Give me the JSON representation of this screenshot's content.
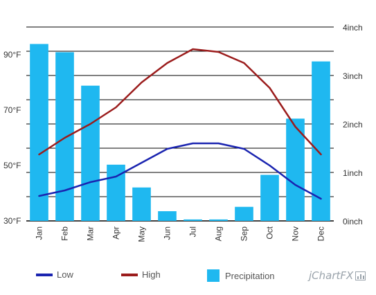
{
  "chart_data": {
    "type": "bar+line",
    "categories": [
      "Jan",
      "Feb",
      "Mar",
      "Apr",
      "May",
      "Jun",
      "Jul",
      "Aug",
      "Sep",
      "Oct",
      "Nov",
      "Dec"
    ],
    "precipitation": {
      "name": "Precipitation",
      "type": "bar",
      "axis": "right",
      "values": [
        3.65,
        3.48,
        2.79,
        1.16,
        0.69,
        0.2,
        0.03,
        0.03,
        0.29,
        0.95,
        2.11,
        3.29
      ],
      "color": "#1fb8f0"
    },
    "series": [
      {
        "name": "Low",
        "type": "line",
        "axis": "left",
        "values": [
          39,
          41,
          44,
          46,
          51,
          56,
          58,
          58,
          56,
          50,
          43,
          38
        ],
        "color": "#1a24b0"
      },
      {
        "name": "High",
        "type": "line",
        "axis": "left",
        "values": [
          54,
          60,
          65,
          71,
          80,
          87,
          92,
          91,
          87,
          78,
          64,
          54
        ],
        "color": "#9b1c1c"
      }
    ],
    "left_axis": {
      "min": 30,
      "max": 100,
      "ticks": [
        30,
        50,
        70,
        90
      ],
      "tick_labels": [
        "30°F",
        "50°F",
        "70°F",
        "90°F"
      ]
    },
    "right_axis": {
      "min": 0,
      "max": 4,
      "ticks": [
        0,
        1,
        2,
        3,
        4
      ],
      "tick_labels": [
        "0inch",
        "1inch",
        "2inch",
        "3inch",
        "4inch"
      ]
    },
    "grid": true,
    "legend_position": "bottom"
  },
  "legend": {
    "low_label": "Low",
    "high_label": "High",
    "precip_label": "Precipitation"
  },
  "brand": {
    "text": "jChartFX"
  }
}
